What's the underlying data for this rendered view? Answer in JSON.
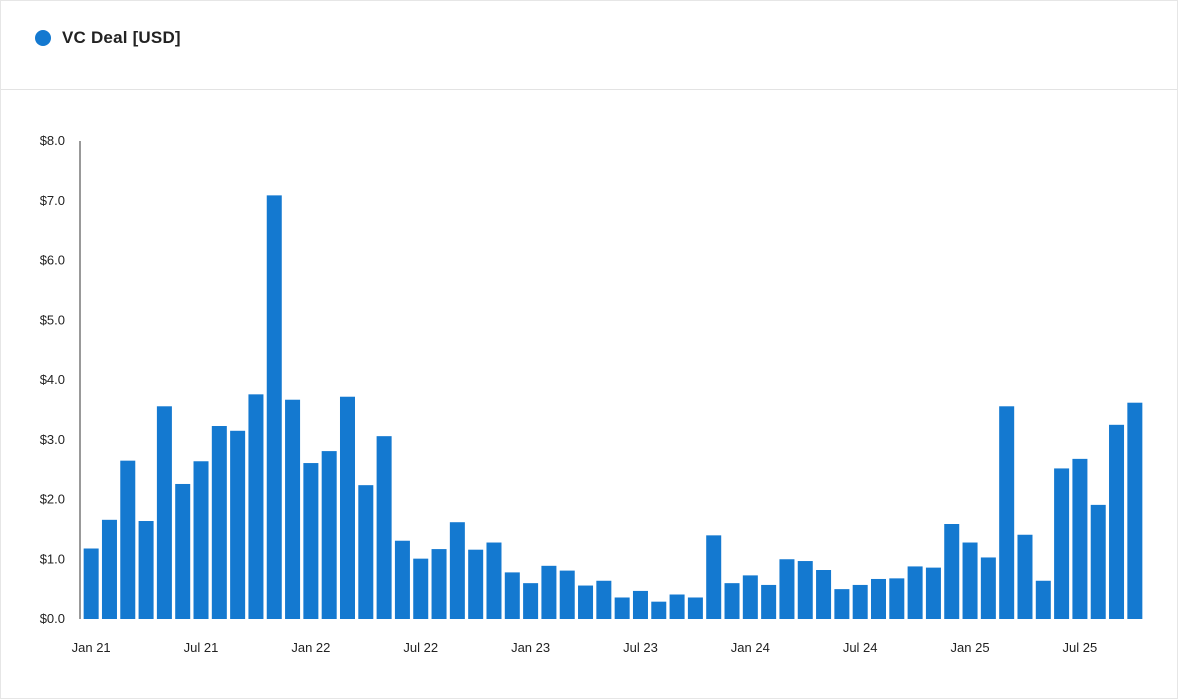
{
  "legend": {
    "label": "VC Deal [USD]",
    "color": "#1479d0"
  },
  "chart_data": {
    "type": "bar",
    "title": "",
    "xlabel": "",
    "ylabel": "",
    "ylim": [
      0,
      8
    ],
    "grid": false,
    "legend_position": "top-left",
    "color": "#1479d0",
    "y_ticks": [
      {
        "value": 0,
        "label": "$0.0"
      },
      {
        "value": 1,
        "label": "$1.0"
      },
      {
        "value": 2,
        "label": "$2.0"
      },
      {
        "value": 3,
        "label": "$3.0"
      },
      {
        "value": 4,
        "label": "$4.0"
      },
      {
        "value": 5,
        "label": "$5.0"
      },
      {
        "value": 6,
        "label": "$6.0"
      },
      {
        "value": 7,
        "label": "$7.0"
      },
      {
        "value": 8,
        "label": "$8.0"
      }
    ],
    "x_ticks": [
      {
        "index": 0,
        "label": "Jan 21"
      },
      {
        "index": 6,
        "label": "Jul 21"
      },
      {
        "index": 12,
        "label": "Jan 22"
      },
      {
        "index": 18,
        "label": "Jul 22"
      },
      {
        "index": 24,
        "label": "Jan 23"
      },
      {
        "index": 30,
        "label": "Jul 23"
      },
      {
        "index": 36,
        "label": "Jan 24"
      },
      {
        "index": 42,
        "label": "Jul 24"
      },
      {
        "index": 48,
        "label": "Jan 25"
      },
      {
        "index": 54,
        "label": "Jul 25"
      }
    ],
    "series": [
      {
        "values": [
          1.18,
          1.66,
          2.65,
          1.64,
          3.56,
          2.26,
          2.64,
          3.23,
          3.15,
          3.76,
          7.09,
          3.67,
          2.61,
          2.81,
          3.72,
          2.24,
          3.06,
          1.31,
          1.01,
          1.17,
          1.62,
          1.16,
          1.28,
          0.78,
          0.6,
          0.89,
          0.81,
          0.56,
          0.64,
          0.36,
          0.47,
          0.29,
          0.41,
          0.36,
          1.4,
          0.6,
          0.73,
          0.57,
          1.0,
          0.97,
          0.82,
          0.5,
          0.57,
          0.67,
          0.68,
          0.88,
          0.86,
          1.59,
          1.28,
          1.03,
          3.56,
          1.41,
          0.64,
          2.52,
          2.68,
          1.91,
          3.25,
          3.62
        ]
      }
    ]
  }
}
